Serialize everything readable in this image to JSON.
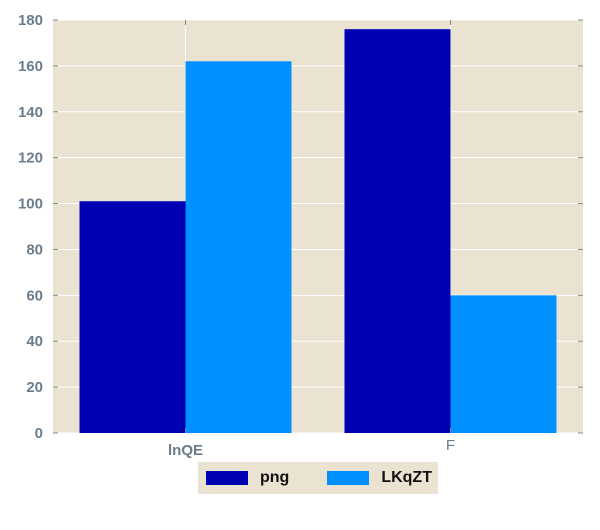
{
  "chart_data": {
    "type": "bar",
    "categories": [
      "lnQE",
      "F"
    ],
    "series": [
      {
        "name": "png",
        "values": [
          101,
          176
        ],
        "color": "#0000b3"
      },
      {
        "name": "LKqZT",
        "values": [
          162,
          60
        ],
        "color": "#0090ff"
      }
    ],
    "ylim": [
      0,
      180
    ],
    "yticks": [
      0,
      20,
      40,
      60,
      80,
      100,
      120,
      140,
      160,
      180
    ],
    "grid": true,
    "legend_position": "bottom-center",
    "background": "#ebe3d1",
    "gridline_color": "#ffffff"
  }
}
